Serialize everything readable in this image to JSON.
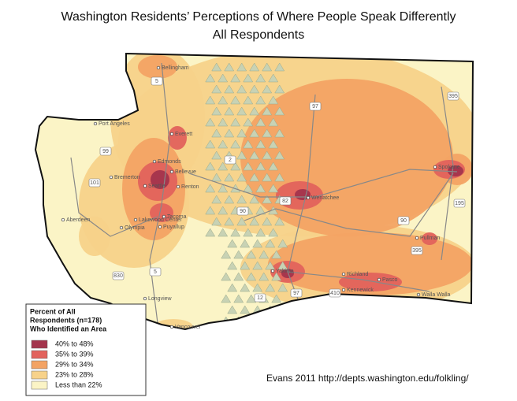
{
  "header": {
    "title": "Washington Residents’ Perceptions of Where People Speak Differently",
    "subtitle": "All Respondents"
  },
  "legend": {
    "title": [
      "Percent of All",
      "Respondents (n=178)",
      "Who Identified an Area"
    ],
    "items": [
      {
        "label": "40% to 48%",
        "color": "#a3344c"
      },
      {
        "label": "35% to 39%",
        "color": "#e2625c"
      },
      {
        "label": "29% to 34%",
        "color": "#f3a364"
      },
      {
        "label": "23% to 28%",
        "color": "#f7d28a"
      },
      {
        "label": "Less than 22%",
        "color": "#fbf4c6"
      }
    ]
  },
  "credit": "Evans 2011  http://depts.washington.edu/folkling/",
  "cities": [
    "Bellingham",
    "Port Angeles",
    "Everett",
    "Edmonds",
    "Bremerton",
    "Seattle",
    "Bellevue",
    "Renton",
    "Lakewood Center",
    "Tacoma",
    "Olympia",
    "Puyallup",
    "Aberdeen",
    "Longview",
    "Vancouver",
    "Wenatchee",
    "Spokane",
    "Pullman",
    "Yakima",
    "Richland",
    "Pasco",
    "Kennewick",
    "Walla Walla"
  ],
  "highways": [
    "5",
    "97",
    "395",
    "2",
    "90",
    "82",
    "195",
    "12",
    "410",
    "101",
    "99",
    "830",
    "5",
    "90",
    "395",
    "97"
  ]
}
